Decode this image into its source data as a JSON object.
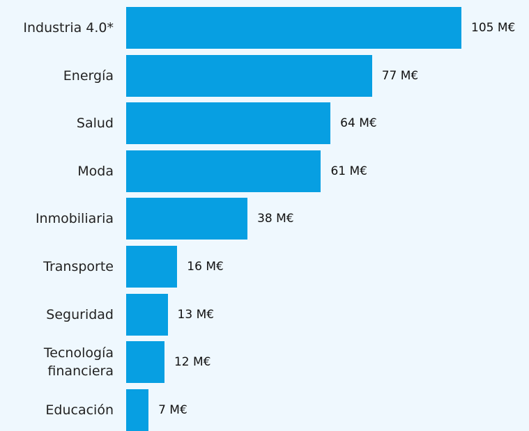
{
  "chart_data": {
    "type": "bar",
    "orientation": "horizontal",
    "categories": [
      "Industria 4.0*",
      "Energía",
      "Salud",
      "Moda",
      "Inmobiliaria",
      "Transporte",
      "Seguridad",
      "Tecnología financiera",
      "Educación"
    ],
    "values": [
      105,
      77,
      64,
      61,
      38,
      16,
      13,
      12,
      7
    ],
    "value_labels": [
      "105 M€",
      "77 M€",
      "64 M€",
      "61 M€",
      "38 M€",
      "16 M€",
      "13 M€",
      "12 M€",
      "7 M€"
    ],
    "color": "#079fe2"
  }
}
